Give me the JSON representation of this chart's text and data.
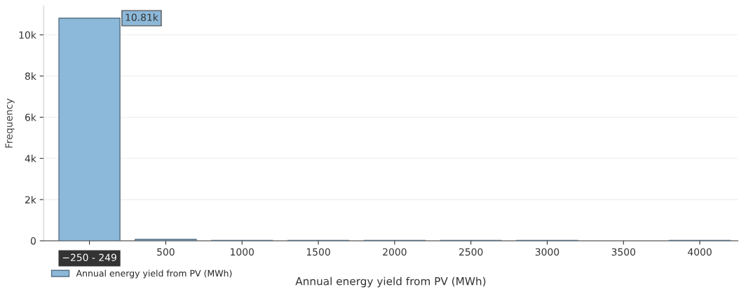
{
  "chart_data": {
    "type": "histogram",
    "xlabel": "Annual energy yield from PV (MWh)",
    "ylabel": "Frequency",
    "bins": [
      -250,
      250,
      750,
      1250,
      1750,
      2250,
      2750,
      3250,
      3750,
      4250
    ],
    "series": [
      {
        "name": "Annual energy yield from PV (MWh)",
        "color": "#8cb8d9",
        "values": [
          10810,
          70,
          20,
          20,
          20,
          20,
          20,
          0,
          20
        ]
      }
    ],
    "xlim": [
      -300,
      4250
    ],
    "xticks": [
      {
        "value": 0,
        "label": null
      },
      500,
      1000,
      1500,
      2000,
      2500,
      3000,
      3500,
      4000
    ],
    "ylim": [
      0,
      11400
    ],
    "yticks": [
      0,
      {
        "value": 2000,
        "label": "2k"
      },
      {
        "value": 4000,
        "label": "4k"
      },
      {
        "value": 6000,
        "label": "6k"
      },
      {
        "value": 8000,
        "label": "8k"
      },
      {
        "value": 10000,
        "label": "10k"
      }
    ],
    "grid": "y",
    "legend": "bottom left",
    "annotations": [
      {
        "text": "10.81k",
        "x": 200,
        "y": 10810
      },
      {
        "text": "−250 - 249",
        "x": 0,
        "y": 0
      }
    ]
  }
}
